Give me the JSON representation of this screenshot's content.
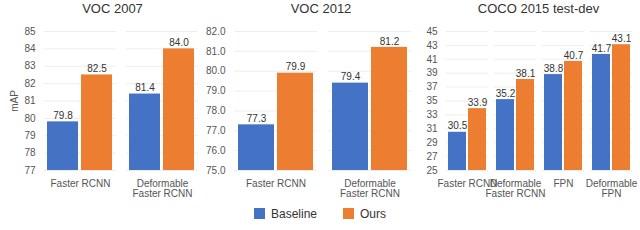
{
  "chart_data": [
    {
      "type": "bar",
      "title": "VOC 2007",
      "ylabel": "mAP",
      "categories": [
        "Faster RCNN",
        "Deformable Faster RCNN"
      ],
      "series": [
        {
          "name": "Baseline",
          "color": "#4472c4",
          "values": [
            79.8,
            81.4
          ],
          "value_labels": [
            "79.8",
            "81.4"
          ]
        },
        {
          "name": "Ours",
          "color": "#ed7d31",
          "values": [
            82.5,
            84.0
          ],
          "value_labels": [
            "82.5",
            "84.0"
          ]
        }
      ],
      "ylim": [
        77,
        85
      ],
      "yticks": [
        77,
        78,
        79,
        80,
        81,
        82,
        83,
        84,
        85
      ],
      "grid": true,
      "data_labels": true,
      "legend": "bottom"
    },
    {
      "type": "bar",
      "title": "VOC 2012",
      "categories": [
        "Faster RCNN",
        "Deformable Faster RCNN"
      ],
      "series": [
        {
          "name": "Baseline",
          "color": "#4472c4",
          "values": [
            77.3,
            79.4
          ],
          "value_labels": [
            "77.3",
            "79.4"
          ]
        },
        {
          "name": "Ours",
          "color": "#ed7d31",
          "values": [
            79.9,
            81.2
          ],
          "value_labels": [
            "79.9",
            "81.2"
          ]
        }
      ],
      "ylim": [
        75,
        82
      ],
      "yticks": [
        75,
        76,
        77,
        78,
        79,
        80,
        81,
        82
      ],
      "grid": true,
      "data_labels": true,
      "legend": "bottom"
    },
    {
      "type": "bar",
      "title": "COCO 2015 test-dev",
      "categories": [
        "Faster RCNN",
        "Deformable Faster RCNN",
        "FPN",
        "Deformable FPN"
      ],
      "series": [
        {
          "name": "Baseline",
          "color": "#4472c4",
          "values": [
            30.5,
            35.2,
            38.8,
            41.7
          ],
          "value_labels": [
            "30.5",
            "35.2",
            "38.8",
            "41.7"
          ]
        },
        {
          "name": "Ours",
          "color": "#ed7d31",
          "values": [
            33.9,
            38.1,
            40.7,
            43.1
          ],
          "value_labels": [
            "33.9",
            "38.1",
            "40.7",
            "43.1"
          ]
        }
      ],
      "ylim": [
        25,
        45
      ],
      "yticks": [
        25,
        27,
        29,
        31,
        33,
        35,
        37,
        39,
        41,
        43,
        45
      ],
      "grid": true,
      "data_labels": true,
      "legend": "bottom"
    }
  ]
}
